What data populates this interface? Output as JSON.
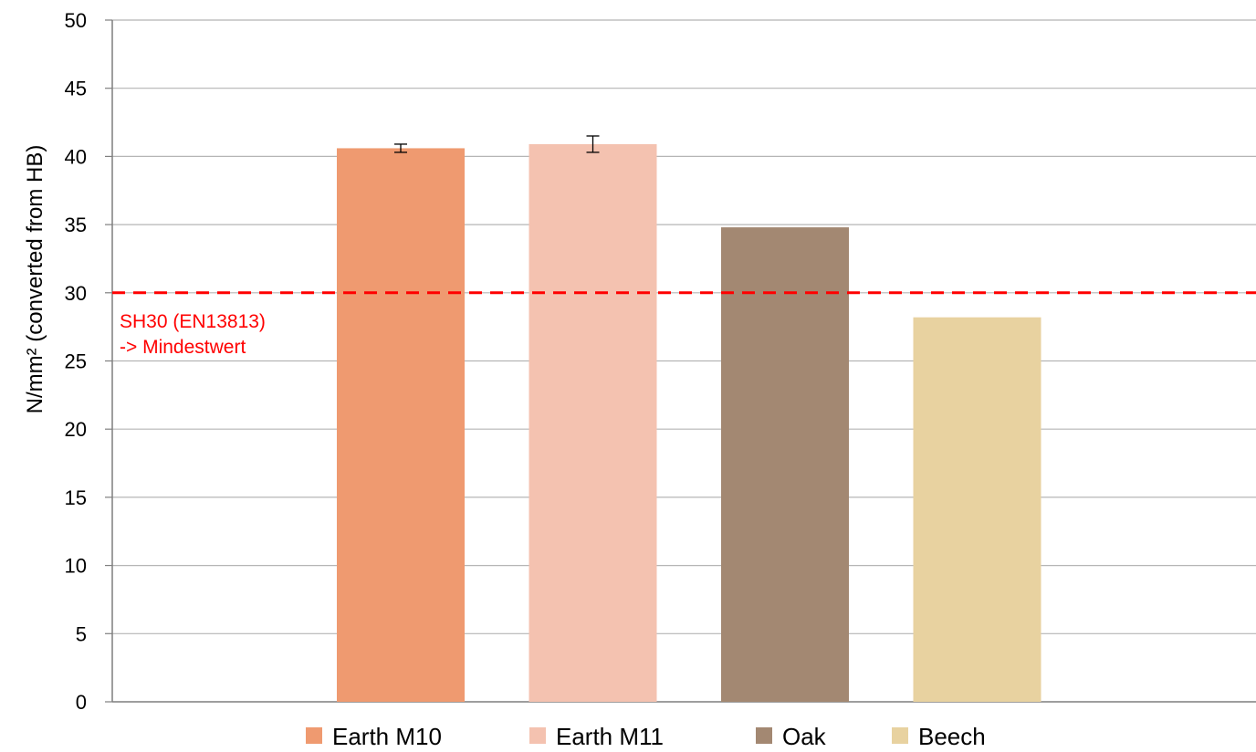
{
  "chart_data": {
    "type": "bar",
    "categories": [
      "Earth M10",
      "Earth M11",
      "Oak",
      "Beech"
    ],
    "values": [
      40.6,
      40.9,
      34.8,
      28.2
    ],
    "error": [
      0.3,
      0.6,
      null,
      null
    ],
    "colors": [
      "#ef9a70",
      "#f4c2b0",
      "#a38872",
      "#e8d2a0"
    ],
    "title": "",
    "xlabel": "",
    "ylabel": "N/mm² (converted from HB)",
    "ylim": [
      0,
      50
    ],
    "yticks": [
      0,
      5,
      10,
      15,
      20,
      25,
      30,
      35,
      40,
      45,
      50
    ],
    "grid": true,
    "legend": {
      "position": "bottom",
      "entries": [
        "Earth M10",
        "Earth M11",
        "Oak",
        "Beech"
      ]
    },
    "reference_line": {
      "value": 30,
      "color": "#ff0000",
      "style": "dashed",
      "label_line1": "SH30 (EN13813)",
      "label_line2": "-> Mindestwert"
    }
  }
}
